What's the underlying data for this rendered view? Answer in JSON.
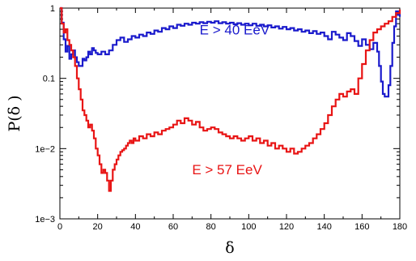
{
  "chart_data": {
    "type": "line",
    "xlabel": "δ",
    "ylabel": "P(δ )",
    "xlim": [
      0,
      180
    ],
    "ylim": [
      0.001,
      1
    ],
    "yscale": "log",
    "grid": false,
    "x_ticks": [
      0,
      20,
      40,
      60,
      80,
      100,
      120,
      140,
      160,
      180
    ],
    "x_tick_labels": [
      "0",
      "20",
      "40",
      "60",
      "80",
      "100",
      "120",
      "140",
      "160",
      "180"
    ],
    "y_ticks": [
      0.001,
      0.01,
      0.1,
      1
    ],
    "y_tick_labels": [
      "1e−3",
      "1e−2",
      "0.1",
      "1"
    ],
    "series": [
      {
        "name": "E > 40 EeV",
        "color": "#1a1acc",
        "step": true,
        "x": [
          0,
          1,
          2,
          3,
          4,
          5,
          6,
          7,
          8,
          9,
          10,
          11,
          12,
          13,
          14,
          15,
          16,
          17,
          18,
          19,
          20,
          22,
          24,
          26,
          28,
          30,
          32,
          34,
          36,
          38,
          40,
          42,
          44,
          46,
          48,
          50,
          52,
          54,
          56,
          58,
          60,
          62,
          64,
          66,
          68,
          70,
          72,
          74,
          76,
          78,
          80,
          82,
          84,
          86,
          88,
          90,
          92,
          94,
          96,
          98,
          100,
          102,
          104,
          106,
          108,
          110,
          112,
          114,
          116,
          118,
          120,
          122,
          124,
          126,
          128,
          130,
          132,
          134,
          136,
          138,
          140,
          142,
          144,
          146,
          148,
          150,
          152,
          154,
          156,
          158,
          160,
          162,
          164,
          166,
          168,
          169,
          170,
          171,
          172,
          173,
          174,
          175,
          176,
          177,
          178,
          179,
          180
        ],
        "values": [
          1.0,
          0.62,
          0.36,
          0.24,
          0.29,
          0.19,
          0.22,
          0.25,
          0.2,
          0.17,
          0.15,
          0.15,
          0.19,
          0.18,
          0.2,
          0.24,
          0.22,
          0.27,
          0.25,
          0.23,
          0.22,
          0.24,
          0.22,
          0.25,
          0.3,
          0.35,
          0.38,
          0.33,
          0.36,
          0.4,
          0.38,
          0.42,
          0.4,
          0.45,
          0.43,
          0.48,
          0.46,
          0.52,
          0.5,
          0.55,
          0.52,
          0.58,
          0.56,
          0.6,
          0.58,
          0.62,
          0.6,
          0.63,
          0.61,
          0.64,
          0.62,
          0.65,
          0.61,
          0.63,
          0.6,
          0.62,
          0.59,
          0.61,
          0.58,
          0.6,
          0.57,
          0.6,
          0.56,
          0.58,
          0.55,
          0.57,
          0.53,
          0.55,
          0.51,
          0.54,
          0.5,
          0.52,
          0.48,
          0.5,
          0.46,
          0.48,
          0.44,
          0.47,
          0.43,
          0.45,
          0.4,
          0.36,
          0.46,
          0.42,
          0.38,
          0.35,
          0.44,
          0.4,
          0.34,
          0.29,
          0.36,
          0.3,
          0.26,
          0.32,
          0.24,
          0.15,
          0.09,
          0.06,
          0.055,
          0.055,
          0.08,
          0.15,
          0.32,
          0.55,
          0.9,
          0.8,
          0.75
        ]
      },
      {
        "name": "E > 57 EeV",
        "color": "#e81414",
        "step": true,
        "x": [
          0,
          1,
          2,
          3,
          4,
          5,
          6,
          7,
          8,
          9,
          10,
          11,
          12,
          13,
          14,
          15,
          16,
          17,
          18,
          19,
          20,
          21,
          22,
          23,
          24,
          25,
          26,
          27,
          28,
          29,
          30,
          31,
          32,
          33,
          34,
          35,
          36,
          37,
          38,
          39,
          40,
          42,
          44,
          46,
          48,
          50,
          52,
          54,
          56,
          58,
          60,
          62,
          64,
          66,
          68,
          70,
          72,
          74,
          76,
          78,
          80,
          82,
          84,
          86,
          88,
          90,
          92,
          94,
          96,
          98,
          100,
          102,
          104,
          106,
          108,
          110,
          112,
          114,
          116,
          118,
          120,
          122,
          124,
          126,
          128,
          130,
          132,
          134,
          136,
          138,
          140,
          142,
          144,
          146,
          148,
          150,
          152,
          154,
          156,
          158,
          160,
          162,
          164,
          166,
          168,
          170,
          172,
          174,
          176,
          178,
          180
        ],
        "values": [
          1.0,
          0.6,
          0.45,
          0.5,
          0.35,
          0.3,
          0.25,
          0.2,
          0.15,
          0.1,
          0.07,
          0.05,
          0.035,
          0.03,
          0.025,
          0.02,
          0.022,
          0.018,
          0.014,
          0.01,
          0.008,
          0.006,
          0.0045,
          0.005,
          0.0045,
          0.0035,
          0.0025,
          0.0035,
          0.005,
          0.006,
          0.007,
          0.008,
          0.009,
          0.0095,
          0.01,
          0.011,
          0.012,
          0.013,
          0.012,
          0.014,
          0.013,
          0.015,
          0.014,
          0.016,
          0.015,
          0.017,
          0.016,
          0.018,
          0.019,
          0.02,
          0.022,
          0.025,
          0.023,
          0.027,
          0.025,
          0.022,
          0.024,
          0.02,
          0.018,
          0.019,
          0.02,
          0.019,
          0.017,
          0.016,
          0.015,
          0.014,
          0.015,
          0.014,
          0.013,
          0.014,
          0.015,
          0.013,
          0.014,
          0.012,
          0.013,
          0.011,
          0.012,
          0.01,
          0.011,
          0.01,
          0.009,
          0.01,
          0.0085,
          0.009,
          0.01,
          0.011,
          0.012,
          0.014,
          0.016,
          0.019,
          0.023,
          0.03,
          0.04,
          0.05,
          0.06,
          0.055,
          0.065,
          0.07,
          0.06,
          0.1,
          0.16,
          0.25,
          0.35,
          0.45,
          0.5,
          0.55,
          0.6,
          0.65,
          0.75,
          0.85,
          0.95
        ]
      }
    ],
    "annotations": [
      {
        "text": "E > 40 EeV",
        "color": "#1a1acc",
        "x": 74,
        "y": 0.42
      },
      {
        "text": "E > 57 EeV",
        "color": "#e81414",
        "x": 70,
        "y": 0.0043
      }
    ]
  }
}
